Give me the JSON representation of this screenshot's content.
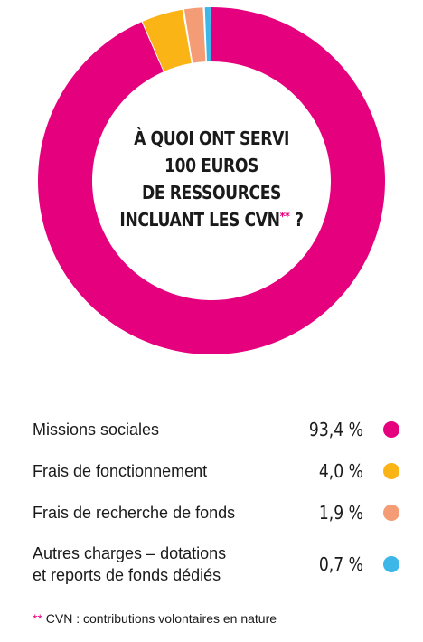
{
  "chart_data": {
    "type": "pie",
    "title_lines": [
      "À QUOI ONT SERVI",
      "100 EUROS",
      "DE RESSOURCES",
      "INCLUANT LES CVN"
    ],
    "title_marker": "**",
    "title_suffix": " ?",
    "categories": [
      "Missions sociales",
      "Frais de fonctionnement",
      "Frais de recherche de fonds",
      "Autres charges – dotations et reports de fonds dédiés"
    ],
    "values": [
      93.4,
      4.0,
      1.9,
      0.7
    ],
    "value_labels": [
      "93,4 %",
      "4,0 %",
      "1,9 %",
      "0,7 %"
    ],
    "colors": [
      "#e5007e",
      "#fbb416",
      "#f39c75",
      "#3cb7e8"
    ]
  },
  "legend": {
    "items": [
      {
        "label": "Missions sociales",
        "value": "93,4 %",
        "color": "#e5007e"
      },
      {
        "label": "Frais de fonctionnement",
        "value": "4,0 %",
        "color": "#fbb416"
      },
      {
        "label": "Frais de recherche de fonds",
        "value": "1,9 %",
        "color": "#f39c75"
      },
      {
        "label_line1": "Autres charges – dotations",
        "label_line2": "et reports de fonds dédiés",
        "value": "0,7 %",
        "color": "#3cb7e8"
      }
    ]
  },
  "footnote": {
    "marker": "**",
    "text": " CVN : contributions volontaires en nature"
  }
}
